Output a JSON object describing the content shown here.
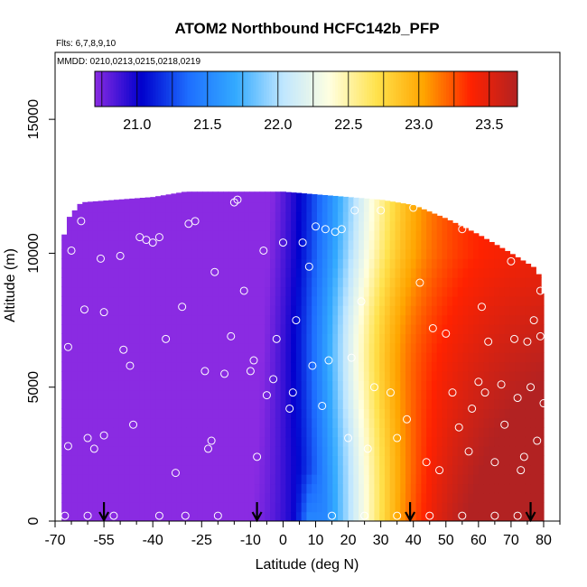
{
  "chart_data": {
    "type": "heatmap",
    "title": "ATOM2 Northbound HCFC142b_PFP",
    "flights_label": "Flts: 6,7,8,9,10",
    "dates_label": "MMDD: 0210,0213,0215,0218,0219",
    "xlabel": "Latitude (deg N)",
    "ylabel": "Altitude (m)",
    "xlim": [
      -70,
      85
    ],
    "ylim": [
      0,
      17500
    ],
    "x_ticks": [
      -70,
      -55,
      -40,
      -25,
      -10,
      0,
      10,
      20,
      30,
      40,
      50,
      60,
      70,
      80
    ],
    "y_ticks": [
      0,
      5000,
      10000,
      15000
    ],
    "colorbar": {
      "range": [
        20.7,
        23.7
      ],
      "ticks": [
        21.0,
        21.5,
        22.0,
        22.5,
        23.0,
        23.5
      ],
      "tick_labels": [
        "21.0",
        "21.5",
        "22.0",
        "22.5",
        "23.0",
        "23.5"
      ],
      "colors": [
        "#8a2be2",
        "#0000cd",
        "#1e6fff",
        "#33aaff",
        "#bfe6ff",
        "#ffffe0",
        "#ffe24d",
        "#ffa500",
        "#ff2200",
        "#b22222"
      ]
    },
    "field": {
      "x_extent": [
        -68,
        80
      ],
      "top_altitude_profile": [
        [
          -68,
          10300
        ],
        [
          -66,
          11300
        ],
        [
          -62,
          11900
        ],
        [
          -40,
          12100
        ],
        [
          -30,
          12300
        ],
        [
          0,
          12300
        ],
        [
          30,
          12000
        ],
        [
          40,
          11800
        ],
        [
          50,
          11300
        ],
        [
          60,
          10700
        ],
        [
          70,
          10000
        ],
        [
          78,
          9400
        ],
        [
          80,
          8500
        ]
      ]
    },
    "sonde_markers_x": [
      -55,
      -8,
      39,
      76
    ],
    "sample_points": [
      [
        -67,
        200
      ],
      [
        -66,
        2800
      ],
      [
        -66,
        6500
      ],
      [
        -65,
        10100
      ],
      [
        -62,
        11200
      ],
      [
        -61,
        7900
      ],
      [
        -60,
        3100
      ],
      [
        -58,
        2700
      ],
      [
        -56,
        9800
      ],
      [
        -55,
        7800
      ],
      [
        -55,
        3200
      ],
      [
        -52,
        200
      ],
      [
        -50,
        9900
      ],
      [
        -49,
        6400
      ],
      [
        -47,
        5800
      ],
      [
        -46,
        3600
      ],
      [
        -44,
        10600
      ],
      [
        -42,
        10500
      ],
      [
        -40,
        10400
      ],
      [
        -38,
        10600
      ],
      [
        -36,
        6800
      ],
      [
        -33,
        1800
      ],
      [
        -31,
        8000
      ],
      [
        -29,
        11100
      ],
      [
        -27,
        11200
      ],
      [
        -24,
        5600
      ],
      [
        -23,
        2700
      ],
      [
        -22,
        3000
      ],
      [
        -21,
        9300
      ],
      [
        -18,
        5500
      ],
      [
        -16,
        6900
      ],
      [
        -15,
        11900
      ],
      [
        -14,
        12000
      ],
      [
        -12,
        8600
      ],
      [
        -10,
        5600
      ],
      [
        -9,
        6000
      ],
      [
        -8,
        2400
      ],
      [
        -6,
        10100
      ],
      [
        -5,
        4700
      ],
      [
        -3,
        5300
      ],
      [
        -2,
        6800
      ],
      [
        0,
        10400
      ],
      [
        2,
        4200
      ],
      [
        3,
        4800
      ],
      [
        4,
        7500
      ],
      [
        6,
        10400
      ],
      [
        8,
        9500
      ],
      [
        9,
        5800
      ],
      [
        10,
        11000
      ],
      [
        12,
        4300
      ],
      [
        13,
        10900
      ],
      [
        14,
        6000
      ],
      [
        16,
        10800
      ],
      [
        18,
        10900
      ],
      [
        20,
        3100
      ],
      [
        21,
        6100
      ],
      [
        22,
        11600
      ],
      [
        24,
        8200
      ],
      [
        26,
        2700
      ],
      [
        28,
        5000
      ],
      [
        30,
        11600
      ],
      [
        33,
        4800
      ],
      [
        35,
        3100
      ],
      [
        38,
        3800
      ],
      [
        40,
        11700
      ],
      [
        42,
        8900
      ],
      [
        44,
        2200
      ],
      [
        46,
        7200
      ],
      [
        48,
        1900
      ],
      [
        50,
        7000
      ],
      [
        52,
        4800
      ],
      [
        54,
        3500
      ],
      [
        55,
        10900
      ],
      [
        57,
        2600
      ],
      [
        58,
        4200
      ],
      [
        60,
        5200
      ],
      [
        61,
        8000
      ],
      [
        62,
        4800
      ],
      [
        63,
        6700
      ],
      [
        65,
        2200
      ],
      [
        66,
        10700
      ],
      [
        67,
        5100
      ],
      [
        68,
        3600
      ],
      [
        70,
        9700
      ],
      [
        71,
        6800
      ],
      [
        72,
        4600
      ],
      [
        73,
        1900
      ],
      [
        74,
        2400
      ],
      [
        75,
        6700
      ],
      [
        76,
        5000
      ],
      [
        77,
        7500
      ],
      [
        78,
        3000
      ],
      [
        79,
        6900
      ],
      [
        79,
        8600
      ],
      [
        80,
        4400
      ],
      [
        -30,
        200
      ],
      [
        -20,
        200
      ],
      [
        15,
        200
      ],
      [
        25,
        200
      ],
      [
        35,
        200
      ],
      [
        45,
        200
      ],
      [
        55,
        200
      ],
      [
        65,
        200
      ],
      [
        72,
        200
      ],
      [
        -60,
        200
      ],
      [
        -38,
        200
      ]
    ]
  }
}
